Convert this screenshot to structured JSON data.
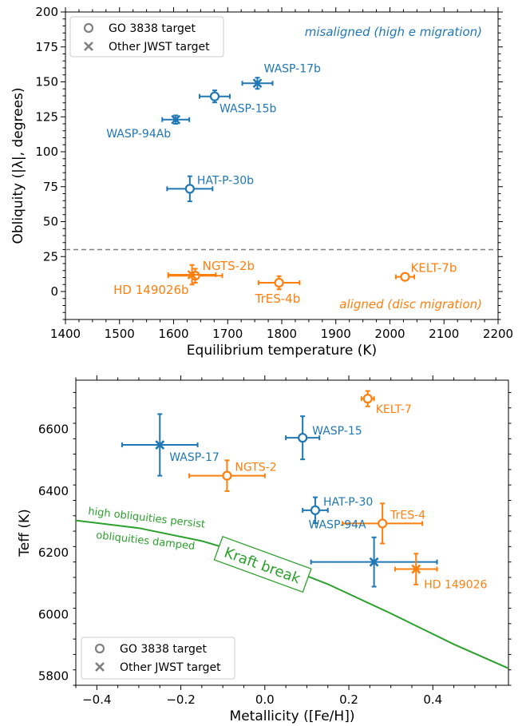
{
  "colors": {
    "blue": "#1f77b4",
    "orange": "#ff7f0e",
    "green": "#2ca02c",
    "grey": "#808080"
  },
  "chart_data": [
    {
      "type": "scatter",
      "xlabel": "Equilibrium temperature (K)",
      "ylabel": "Obliquity (|λ|, degrees)",
      "xlim": [
        1400,
        2200
      ],
      "ylim": [
        -20,
        200
      ],
      "xticks": [
        1400,
        1500,
        1600,
        1700,
        1800,
        1900,
        2000,
        2100,
        2200
      ],
      "yticks": [
        0,
        25,
        50,
        75,
        100,
        125,
        150,
        175,
        200
      ],
      "legend": {
        "position": "top-left",
        "entries": [
          "GO 3838 target",
          "Other JWST target"
        ]
      },
      "reference_line": {
        "y": 30,
        "style": "dashed"
      },
      "annotations": [
        "misaligned (high e migration)",
        "aligned (disc migration)"
      ],
      "points": [
        {
          "label": "WASP-17b",
          "x": 1755,
          "y": 149,
          "xerr": 28,
          "yerr": 4,
          "marker": "x",
          "group": "misaligned"
        },
        {
          "label": "WASP-15b",
          "x": 1676,
          "y": 139.6,
          "xerr": 28,
          "yerr": 4.3,
          "marker": "o",
          "group": "misaligned"
        },
        {
          "label": "WASP-94Ab",
          "x": 1604,
          "y": 123,
          "xerr": 25,
          "yerr": 3,
          "marker": "x",
          "group": "misaligned"
        },
        {
          "label": "HAT-P-30b",
          "x": 1630,
          "y": 73.5,
          "xerr": 42,
          "yerr": 9,
          "marker": "o",
          "group": "misaligned"
        },
        {
          "label": "NGTS-2b",
          "x": 1640,
          "y": 11.3,
          "xerr": 50,
          "yerr": 5,
          "marker": "o",
          "group": "aligned"
        },
        {
          "label": "HD 149026b",
          "x": 1634,
          "y": 12,
          "xerr": 44,
          "yerr": 7,
          "marker": "x",
          "group": "aligned"
        },
        {
          "label": "TrES-4b",
          "x": 1795,
          "y": 6.3,
          "xerr": 38,
          "yerr": 4.7,
          "marker": "o",
          "group": "aligned"
        },
        {
          "label": "KELT-7b",
          "x": 2028,
          "y": 10.5,
          "xerr": 17,
          "yerr": 2,
          "marker": "o",
          "group": "aligned"
        }
      ]
    },
    {
      "type": "scatter",
      "xlabel": "Metallicity ([Fe/H])",
      "ylabel": "Teff (K)",
      "xlim": [
        -0.45,
        0.58
      ],
      "ylim": [
        5770,
        6760
      ],
      "xticks": [
        -0.4,
        -0.2,
        0.0,
        0.2,
        0.4
      ],
      "yticks": [
        5800,
        6000,
        6200,
        6400,
        6600
      ],
      "legend": {
        "position": "bottom-left",
        "entries": [
          "GO 3838 target",
          "Other JWST target"
        ]
      },
      "curve": {
        "label": "Kraft break",
        "upper_label": "high obliquities persist",
        "lower_label": "obliquities damped",
        "x": [
          -0.45,
          -0.3,
          -0.15,
          0.0,
          0.15,
          0.3,
          0.45,
          0.58
        ],
        "y": [
          6305,
          6280,
          6238,
          6178,
          6098,
          6003,
          5903,
          5825
        ]
      },
      "points": [
        {
          "label": "KELT-7",
          "x": 0.245,
          "y": 6700,
          "xerr": 0.015,
          "yerr": 25,
          "marker": "o",
          "group": "aligned"
        },
        {
          "label": "WASP-15",
          "x": 0.09,
          "y": 6573,
          "xerr": 0.04,
          "yerr": 70,
          "marker": "o",
          "group": "misaligned"
        },
        {
          "label": "WASP-17",
          "x": -0.25,
          "y": 6550,
          "xerr": 0.09,
          "yerr": 100,
          "marker": "x",
          "group": "misaligned"
        },
        {
          "label": "NGTS-2",
          "x": -0.09,
          "y": 6450,
          "xerr": 0.09,
          "yerr": 50,
          "marker": "o",
          "group": "aligned"
        },
        {
          "label": "HAT-P-30",
          "x": 0.12,
          "y": 6338,
          "xerr": 0.03,
          "yerr": 42,
          "marker": "o",
          "group": "misaligned"
        },
        {
          "label": "TrES-4",
          "x": 0.28,
          "y": 6295,
          "xerr": 0.095,
          "yerr": 65,
          "marker": "o",
          "group": "aligned"
        },
        {
          "label": "WASP-94A",
          "x": 0.26,
          "y": 6170,
          "xerr": 0.15,
          "yerr": 80,
          "marker": "x",
          "group": "misaligned"
        },
        {
          "label": "HD 149026",
          "x": 0.36,
          "y": 6147,
          "xerr": 0.05,
          "yerr": 50,
          "marker": "x",
          "group": "aligned"
        }
      ]
    }
  ]
}
